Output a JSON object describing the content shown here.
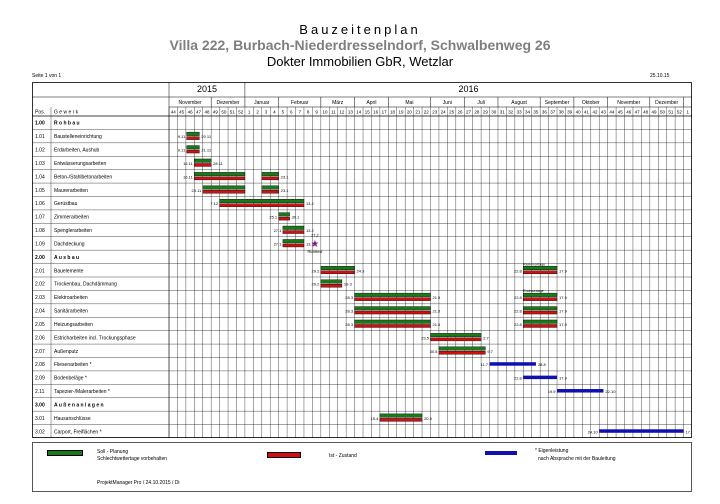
{
  "header": {
    "title": "Bauzeitenplan",
    "project": "Villa 222, Burbach-Niederdresselndorf, Schwalbenweg 26",
    "company": "Dokter Immobilien GbR, Wetzlar",
    "page": "Seite 1 von 1",
    "date": "25.10.15"
  },
  "columns": {
    "pos": "Pos.",
    "gewerk": "G e w e r k"
  },
  "years": [
    {
      "label": "2015",
      "from": 44,
      "to": 53
    },
    {
      "label": "2016",
      "from": 1,
      "to": 52
    }
  ],
  "months": [
    {
      "label": "November",
      "span": 5
    },
    {
      "label": "Dezember",
      "span": 4
    },
    {
      "label": "Januar",
      "span": 4
    },
    {
      "label": "Februar",
      "span": 5
    },
    {
      "label": "März",
      "span": 4
    },
    {
      "label": "April",
      "span": 4
    },
    {
      "label": "Mai",
      "span": 5
    },
    {
      "label": "Juni",
      "span": 4
    },
    {
      "label": "Juli",
      "span": 4
    },
    {
      "label": "August",
      "span": 5
    },
    {
      "label": "September",
      "span": 4
    },
    {
      "label": "Oktober",
      "span": 4
    },
    {
      "label": "November",
      "span": 5
    },
    {
      "label": "Dezember",
      "span": 4
    }
  ],
  "weeks": [
    "44",
    "45",
    "46",
    "47",
    "48",
    "49",
    "50",
    "51",
    "52",
    "1",
    "2",
    "3",
    "4",
    "5",
    "6",
    "7",
    "8",
    "9",
    "10",
    "11",
    "12",
    "13",
    "14",
    "15",
    "16",
    "17",
    "18",
    "19",
    "20",
    "21",
    "22",
    "23",
    "24",
    "25",
    "26",
    "27",
    "28",
    "29",
    "30",
    "31",
    "32",
    "33",
    "34",
    "35",
    "36",
    "37",
    "38",
    "39",
    "40",
    "41",
    "42",
    "43",
    "44",
    "45",
    "46",
    "47",
    "48",
    "49",
    "50",
    "51",
    "52",
    "1"
  ],
  "rows": [
    {
      "pos": "1.00",
      "name": "R o h b a u",
      "section": true
    },
    {
      "pos": "1.01",
      "name": "Baustelleneinrichtung",
      "bars": [
        {
          "s": 2.1,
          "e": 3.6,
          "type": "plan",
          "start": "9.11",
          "end": "20.11"
        }
      ]
    },
    {
      "pos": "1.02",
      "name": "Erdarbeiten, Aushub",
      "bars": [
        {
          "s": 2.1,
          "e": 3.6,
          "type": "plan",
          "start": "9.11",
          "end": "21.11"
        }
      ]
    },
    {
      "pos": "1.03",
      "name": "Entwässerungsarbeiten",
      "bars": [
        {
          "s": 3.0,
          "e": 5.0,
          "type": "plan",
          "start": "16.11",
          "end": "28.11"
        }
      ]
    },
    {
      "pos": "1.04",
      "name": "Beton-/Stahlbetonarbeiten",
      "bars": [
        {
          "s": 3.0,
          "e": 9.0,
          "type": "plan",
          "start": "16.11",
          "end": ""
        },
        {
          "s": 11.0,
          "e": 13.0,
          "type": "plan",
          "start": "",
          "end": "23.1"
        }
      ]
    },
    {
      "pos": "1.05",
      "name": "Maurerarbeiten",
      "bars": [
        {
          "s": 4.0,
          "e": 9.0,
          "type": "plan",
          "start": "23.11",
          "end": ""
        },
        {
          "s": 11.0,
          "e": 13.0,
          "type": "plan",
          "start": "",
          "end": "23.1"
        }
      ]
    },
    {
      "pos": "1.06",
      "name": "Gerüstbau",
      "bars": [
        {
          "s": 6.0,
          "e": 16.0,
          "type": "plan",
          "start": "7.12",
          "end": "13.2"
        }
      ]
    },
    {
      "pos": "1.07",
      "name": "Zimmerarbeiten",
      "bars": [
        {
          "s": 13.0,
          "e": 14.3,
          "type": "plan",
          "start": "25.1",
          "end": "30.1"
        }
      ]
    },
    {
      "pos": "1.08",
      "name": "Spenglerarbeiten",
      "bars": [
        {
          "s": 13.5,
          "e": 16.0,
          "type": "plan",
          "start": "27.1",
          "end": "13.2"
        }
      ]
    },
    {
      "pos": "1.09",
      "name": "Dachdeckung",
      "bars": [
        {
          "s": 13.5,
          "e": 16.0,
          "type": "plan",
          "start": "27.1",
          "end": "13.2"
        }
      ],
      "milestone": {
        "at": 17.3,
        "label": "Richtfest",
        "date": "27.2"
      }
    },
    {
      "pos": "2.00",
      "name": "A u s b a u",
      "section": true
    },
    {
      "pos": "2.01",
      "name": "Bauelemente",
      "bars": [
        {
          "s": 18.0,
          "e": 22.0,
          "type": "plan",
          "start": "29.2",
          "end": "24.3"
        },
        {
          "s": 42.0,
          "e": 46.0,
          "type": "plan",
          "start": "22.8",
          "end": "17.9",
          "note": "Kleinmontage"
        }
      ]
    },
    {
      "pos": "2.02",
      "name": "Trockenbau, Dachdämmung",
      "bars": [
        {
          "s": 18.0,
          "e": 20.5,
          "type": "plan",
          "start": "29.2",
          "end": "19.3"
        }
      ]
    },
    {
      "pos": "2.03",
      "name": "Elektroarbeiten",
      "bars": [
        {
          "s": 22.0,
          "e": 31.0,
          "type": "plan",
          "start": "28.3",
          "end": "21.5"
        },
        {
          "s": 42.0,
          "e": 46.0,
          "type": "plan",
          "start": "22.8",
          "end": "17.9",
          "note": "Endmontage"
        }
      ]
    },
    {
      "pos": "2.04",
      "name": "Sanitärarbeiten",
      "bars": [
        {
          "s": 22.0,
          "e": 31.0,
          "type": "plan",
          "start": "28.3",
          "end": "21.5"
        },
        {
          "s": 42.0,
          "e": 46.0,
          "type": "plan",
          "start": "22.8",
          "end": "17.9"
        }
      ]
    },
    {
      "pos": "2.05",
      "name": "Heizungsarbeiten",
      "bars": [
        {
          "s": 22.0,
          "e": 31.0,
          "type": "plan",
          "start": "28.3",
          "end": "21.5"
        },
        {
          "s": 42.0,
          "e": 46.0,
          "type": "plan",
          "start": "22.8",
          "end": "17.9"
        }
      ]
    },
    {
      "pos": "2.06",
      "name": "Estricharbeiten incl. Trockungsphase",
      "bars": [
        {
          "s": 31.0,
          "e": 37.0,
          "type": "plan",
          "start": "23.5",
          "end": "2.7"
        }
      ]
    },
    {
      "pos": "2.07",
      "name": "Außenputz",
      "bars": [
        {
          "s": 32.0,
          "e": 37.5,
          "type": "plan",
          "start": "30.5",
          "end": "9.7"
        }
      ]
    },
    {
      "pos": "2.08",
      "name": "Fliesenarbeiten *",
      "bars": [
        {
          "s": 38.0,
          "e": 43.5,
          "type": "eigen",
          "start": "11.7",
          "end": "28.8"
        }
      ]
    },
    {
      "pos": "2.09",
      "name": "Bodenbeläge *",
      "bars": [
        {
          "s": 42.0,
          "e": 46.0,
          "type": "eigen",
          "start": "22.8",
          "end": "17.9"
        }
      ]
    },
    {
      "pos": "2.11",
      "name": "Tapezier-/Malerarbeiten *",
      "bars": [
        {
          "s": 46.0,
          "e": 51.5,
          "type": "eigen",
          "start": "19.9",
          "end": "22.10"
        }
      ]
    },
    {
      "pos": "3.00",
      "name": "A u ß e n a n l a g e n",
      "section": true
    },
    {
      "pos": "3.01",
      "name": "Hausanschlüsse",
      "bars": [
        {
          "s": 25.0,
          "e": 30.0,
          "type": "plan",
          "start": "15.4",
          "end": "20.5"
        }
      ]
    },
    {
      "pos": "3.02",
      "name": "Carport, Freiflächen *",
      "bars": [
        {
          "s": 51.0,
          "e": 61.0,
          "type": "eigen",
          "start": "24.10",
          "end": "17.12"
        }
      ]
    }
  ],
  "legend": [
    {
      "key": "plan",
      "text": "Soll - Planung",
      "text2": "Schlechtwettertage vorbehalten",
      "color": "#1a7a1a"
    },
    {
      "key": "ist",
      "text": "Ist - Zustand",
      "text2": "",
      "color": "#d01010"
    },
    {
      "key": "eigen",
      "text": "* Eigenleistung",
      "text2": "nach Absprache mit der Bauleitung",
      "color": "#1010b0"
    }
  ],
  "footer": "ProjektManager Pro / 24.10.2015 / Di",
  "colors": {
    "plan": "#1a7a1a",
    "ist": "#d01010",
    "eigen": "#1010b0",
    "milestone": "#8b1a8b"
  }
}
